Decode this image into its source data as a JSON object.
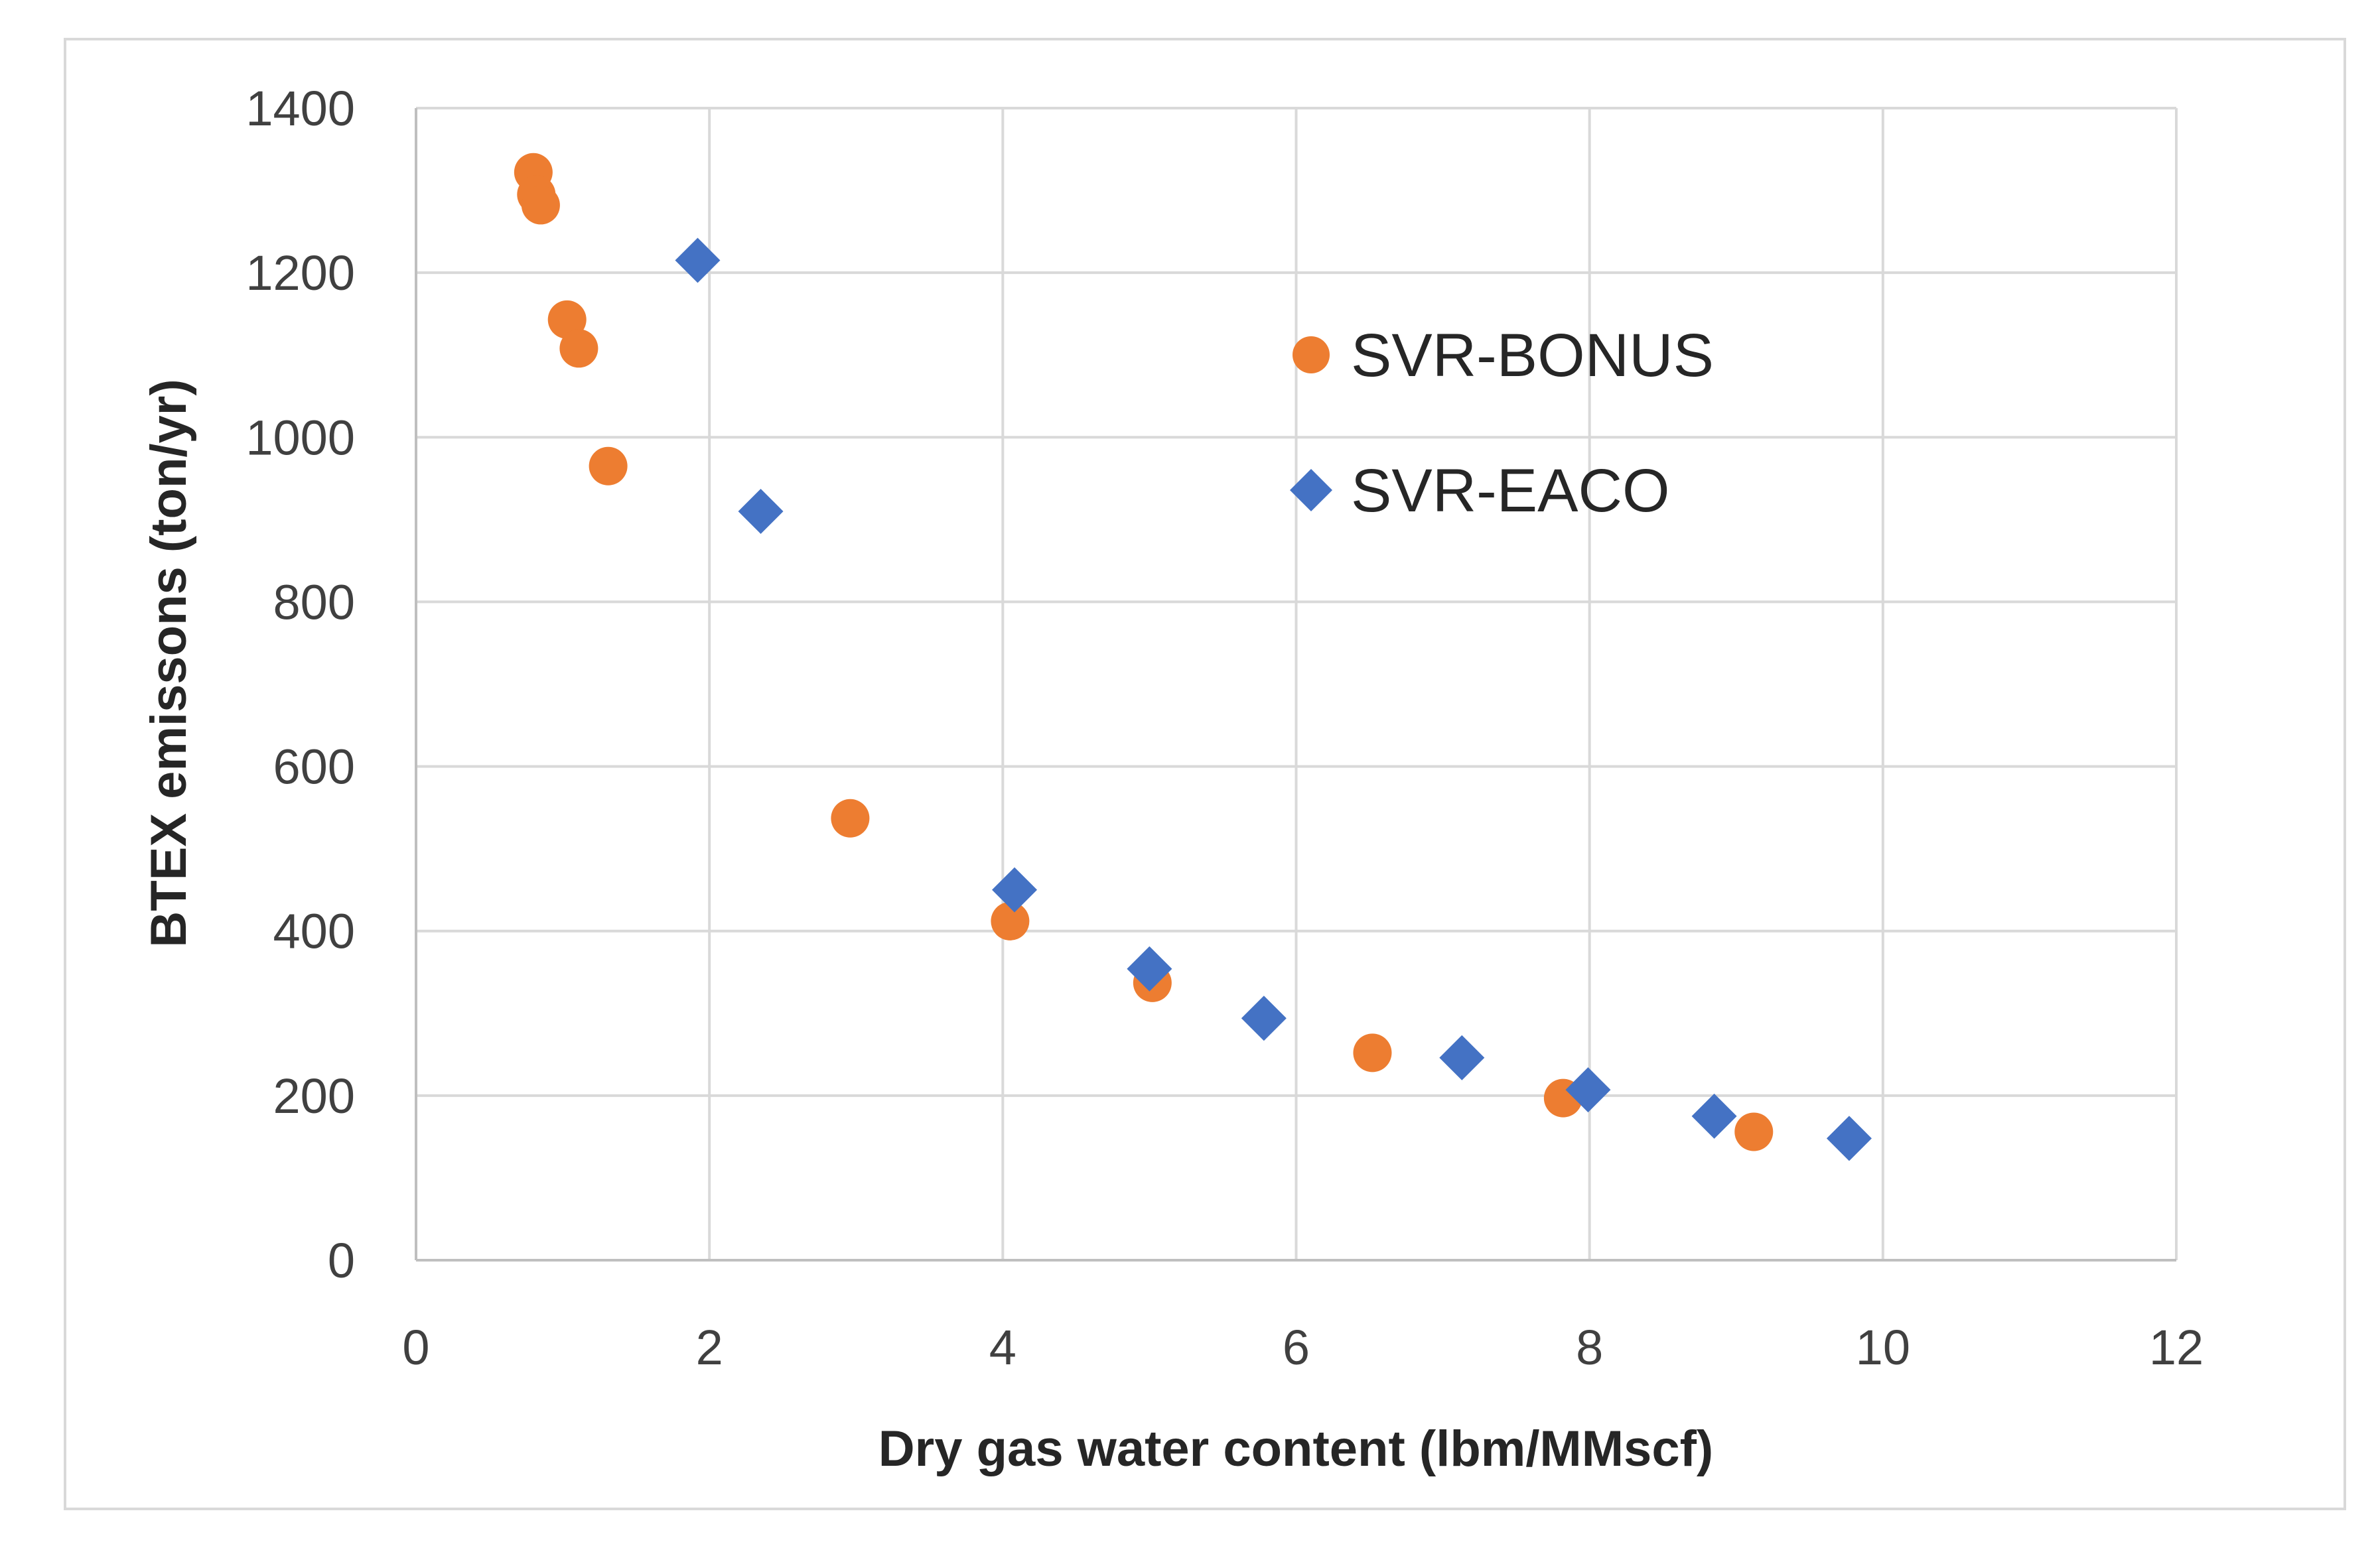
{
  "chart_data": {
    "type": "scatter",
    "title": "",
    "xlabel": "Dry gas water content (lbm/MMscf)",
    "ylabel": "BTEX emissons (ton/yr)",
    "xlim": [
      0,
      12
    ],
    "ylim": [
      0,
      1400
    ],
    "xticks": [
      0,
      2,
      4,
      6,
      8,
      10,
      12
    ],
    "yticks": [
      0,
      200,
      400,
      600,
      800,
      1000,
      1200,
      1400
    ],
    "xtick_labels": [
      "0",
      "2",
      "4",
      "6",
      "8",
      "10",
      "12"
    ],
    "ytick_labels": [
      "0",
      "200",
      "400",
      "600",
      "800",
      "1000",
      "1200",
      "1400"
    ],
    "grid": true,
    "legend_position": "upper-middle-right",
    "series": [
      {
        "name": "SVR-BONUS",
        "marker": "circle",
        "color": "#ed7d31",
        "points": [
          [
            0.8,
            1322
          ],
          [
            0.82,
            1295
          ],
          [
            0.85,
            1282
          ],
          [
            1.03,
            1143
          ],
          [
            1.11,
            1108
          ],
          [
            1.31,
            965
          ],
          [
            2.96,
            537
          ],
          [
            4.05,
            412
          ],
          [
            5.02,
            337
          ],
          [
            6.52,
            252
          ],
          [
            7.82,
            197
          ],
          [
            9.12,
            156
          ]
        ]
      },
      {
        "name": "SVR-EACO",
        "marker": "diamond",
        "color": "#4472c4",
        "points": [
          [
            1.92,
            1215
          ],
          [
            2.35,
            910
          ],
          [
            4.08,
            450
          ],
          [
            5.0,
            354
          ],
          [
            5.78,
            294
          ],
          [
            7.13,
            246
          ],
          [
            7.99,
            207
          ],
          [
            8.85,
            175
          ],
          [
            9.77,
            148
          ]
        ]
      }
    ]
  }
}
